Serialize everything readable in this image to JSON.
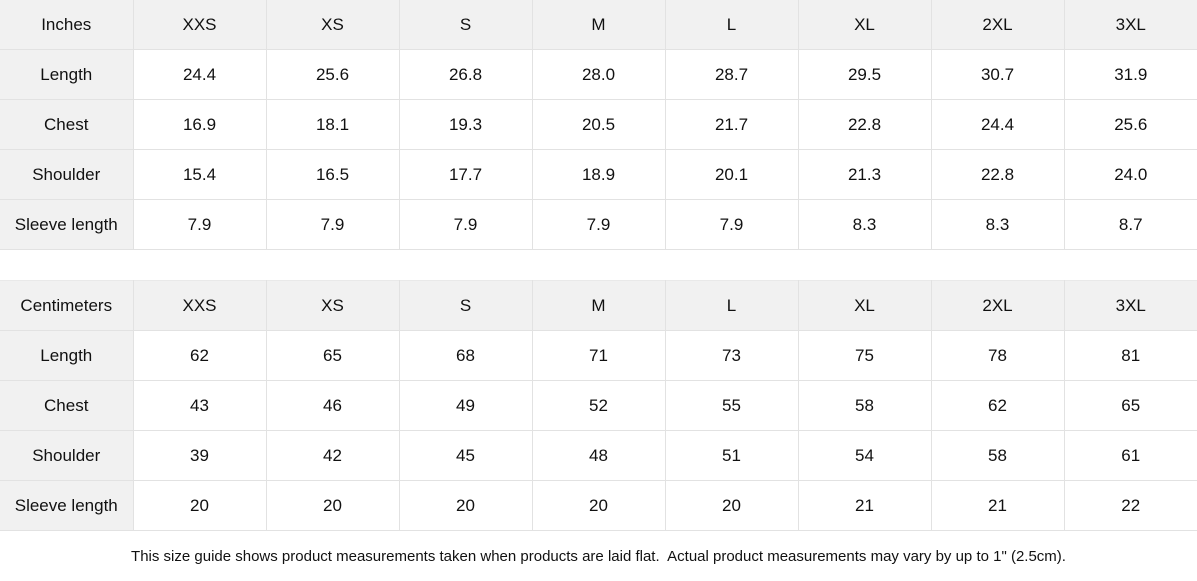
{
  "colors": {
    "header_bg": "#f1f1f1",
    "border": "#e2e2e2",
    "text": "#111111",
    "background": "#ffffff"
  },
  "chart_data": [
    {
      "type": "table",
      "unit_label": "Inches",
      "size_headers": [
        "XXS",
        "XS",
        "S",
        "M",
        "L",
        "XL",
        "2XL",
        "3XL"
      ],
      "rows": [
        {
          "label": "Length",
          "values": [
            "24.4",
            "25.6",
            "26.8",
            "28.0",
            "28.7",
            "29.5",
            "30.7",
            "31.9"
          ]
        },
        {
          "label": "Chest",
          "values": [
            "16.9",
            "18.1",
            "19.3",
            "20.5",
            "21.7",
            "22.8",
            "24.4",
            "25.6"
          ]
        },
        {
          "label": "Shoulder",
          "values": [
            "15.4",
            "16.5",
            "17.7",
            "18.9",
            "20.1",
            "21.3",
            "22.8",
            "24.0"
          ]
        },
        {
          "label": "Sleeve length",
          "values": [
            "7.9",
            "7.9",
            "7.9",
            "7.9",
            "7.9",
            "8.3",
            "8.3",
            "8.7"
          ]
        }
      ]
    },
    {
      "type": "table",
      "unit_label": "Centimeters",
      "size_headers": [
        "XXS",
        "XS",
        "S",
        "M",
        "L",
        "XL",
        "2XL",
        "3XL"
      ],
      "rows": [
        {
          "label": "Length",
          "values": [
            "62",
            "65",
            "68",
            "71",
            "73",
            "75",
            "78",
            "81"
          ]
        },
        {
          "label": "Chest",
          "values": [
            "43",
            "46",
            "49",
            "52",
            "55",
            "58",
            "62",
            "65"
          ]
        },
        {
          "label": "Shoulder",
          "values": [
            "39",
            "42",
            "45",
            "48",
            "51",
            "54",
            "58",
            "61"
          ]
        },
        {
          "label": "Sleeve length",
          "values": [
            "20",
            "20",
            "20",
            "20",
            "20",
            "21",
            "21",
            "22"
          ]
        }
      ]
    }
  ],
  "footnote": "This size guide shows product measurements taken when products are laid flat.  Actual product measurements may vary by up to 1\" (2.5cm)."
}
